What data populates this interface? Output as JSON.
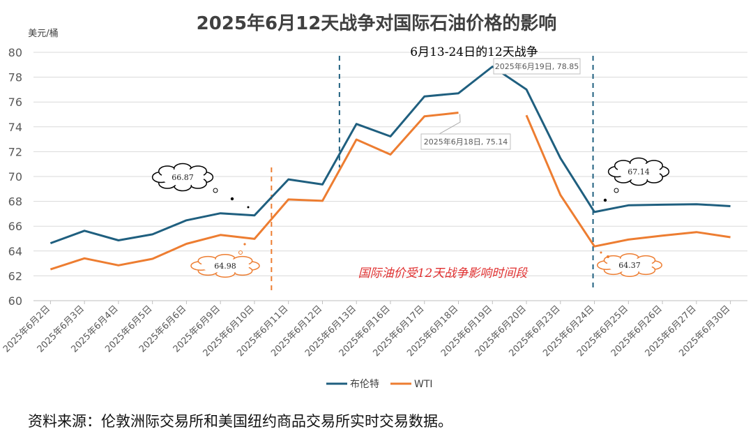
{
  "chart_data": {
    "type": "line",
    "title": "2025年6月12天战争对国际石油价格的影响",
    "ylabel": "美元/桶",
    "ylim": [
      60,
      80
    ],
    "yticks": [
      60,
      62,
      64,
      66,
      68,
      70,
      72,
      74,
      76,
      78,
      80
    ],
    "grid": true,
    "legend_position": "bottom",
    "categories": [
      "2025年6月2日",
      "2025年6月3日",
      "2025年6月4日",
      "2025年6月5日",
      "2025年6月6日",
      "2025年6月9日",
      "2025年6月10日",
      "2025年6月11日",
      "2025年6月12日",
      "2025年6月13日",
      "2025年6月16日",
      "2025年6月17日",
      "2025年6月18日",
      "2025年6月19日",
      "2025年6月20日",
      "2025年6月23日",
      "2025年6月24日",
      "2025年6月25日",
      "2025年6月26日",
      "2025年6月27日",
      "2025年6月30日"
    ],
    "series": [
      {
        "name": "布伦特",
        "color": "#1f5f7f",
        "values": [
          64.63,
          65.63,
          64.86,
          65.34,
          66.47,
          67.04,
          66.87,
          69.77,
          69.36,
          74.23,
          73.23,
          76.45,
          76.7,
          78.85,
          77.01,
          71.48,
          67.14,
          67.68,
          67.73,
          67.77,
          67.61
        ]
      },
      {
        "name": "WTI",
        "color": "#ed7d31",
        "values": [
          62.52,
          63.41,
          62.85,
          63.37,
          64.58,
          65.29,
          64.98,
          68.15,
          68.04,
          72.98,
          71.77,
          74.84,
          75.14,
          null,
          74.93,
          68.51,
          64.37,
          64.92,
          65.24,
          65.52,
          65.11
        ]
      }
    ],
    "annotations": {
      "war_period_label": "6月13-24日的12天战争",
      "impact_label": "国际油价受12天战争影响时间段",
      "callout_brent_peak": "2025年6月19日, 78.85",
      "callout_wti_peak": "2025年6月18日, 75.14",
      "cloud_brent_before": "66.87",
      "cloud_wti_before": "64.98",
      "cloud_brent_after": "67.14",
      "cloud_wti_after": "64.37"
    }
  },
  "source_text": "资料来源：伦敦洲际交易所和美国纽约商品交易所实时交易数据。"
}
